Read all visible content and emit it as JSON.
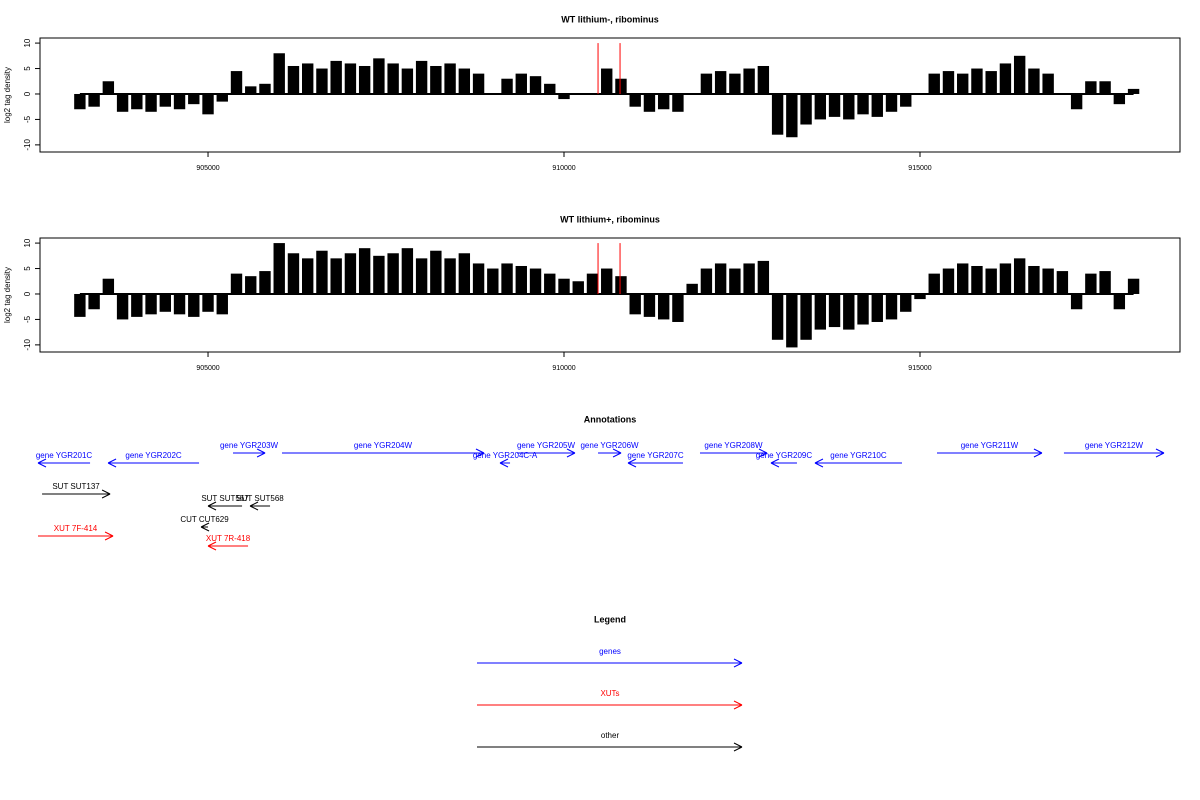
{
  "chart_data": [
    {
      "type": "bar",
      "title": "WT lithium-, ribominus",
      "ylabel": "log2 tag density",
      "color": "#000000",
      "x": [
        903200,
        903400,
        903600,
        903800,
        904000,
        904200,
        904400,
        904600,
        904800,
        905000,
        905200,
        905400,
        905600,
        905800,
        906000,
        906200,
        906400,
        906600,
        906800,
        907000,
        907200,
        907400,
        907600,
        907800,
        908000,
        908200,
        908400,
        908600,
        908800,
        909000,
        909200,
        909400,
        909600,
        909800,
        910000,
        910200,
        910400,
        910600,
        910800,
        911000,
        911200,
        911400,
        911600,
        911800,
        912000,
        912200,
        912400,
        912600,
        912800,
        913000,
        913200,
        913400,
        913600,
        913800,
        914000,
        914200,
        914400,
        914600,
        914800,
        915000,
        915200,
        915400,
        915600,
        915800,
        916000,
        916200,
        916400,
        916600,
        916800,
        917000,
        917200,
        917400,
        917600,
        917800,
        918000
      ],
      "values": [
        -3,
        -2.5,
        2.5,
        -3.5,
        -3,
        -3.5,
        -2.5,
        -3,
        -2,
        -4,
        -1.5,
        4.5,
        1.5,
        2,
        8,
        5.5,
        6,
        5,
        6.5,
        6,
        5.5,
        7,
        6,
        5,
        6.5,
        5.5,
        6,
        5,
        4,
        0,
        3,
        4,
        3.5,
        2,
        -1,
        0,
        0,
        5,
        3,
        -2.5,
        -3.5,
        -3,
        -3.5,
        0,
        4,
        4.5,
        4,
        5,
        5.5,
        -8,
        -8.5,
        -6,
        -5,
        -4.5,
        -5,
        -4,
        -4.5,
        -3.5,
        -2.5,
        0,
        4,
        4.5,
        4,
        5,
        4.5,
        6,
        7.5,
        5,
        4,
        0,
        -3,
        2.5,
        2.5,
        -2,
        1
      ],
      "highlight": {
        "x": [
          910478,
          910787
        ],
        "values": [
          10,
          10
        ],
        "color": "#ff0000"
      },
      "xlim": [
        902640,
        918652
      ],
      "xticks": [
        905000,
        910000,
        915000
      ],
      "ylim": [
        -11.4,
        11
      ],
      "yticks": [
        -10,
        -5,
        0,
        5,
        10
      ]
    },
    {
      "type": "bar",
      "title": "WT lithium+, ribominus",
      "ylabel": "log2 tag density",
      "color": "#000000",
      "x": [
        903200,
        903400,
        903600,
        903800,
        904000,
        904200,
        904400,
        904600,
        904800,
        905000,
        905200,
        905400,
        905600,
        905800,
        906000,
        906200,
        906400,
        906600,
        906800,
        907000,
        907200,
        907400,
        907600,
        907800,
        908000,
        908200,
        908400,
        908600,
        908800,
        909000,
        909200,
        909400,
        909600,
        909800,
        910000,
        910200,
        910400,
        910600,
        910800,
        911000,
        911200,
        911400,
        911600,
        911800,
        912000,
        912200,
        912400,
        912600,
        912800,
        913000,
        913200,
        913400,
        913600,
        913800,
        914000,
        914200,
        914400,
        914600,
        914800,
        915000,
        915200,
        915400,
        915600,
        915800,
        916000,
        916200,
        916400,
        916600,
        916800,
        917000,
        917200,
        917400,
        917600,
        917800,
        918000
      ],
      "values": [
        -4.5,
        -3,
        3,
        -5,
        -4.5,
        -4,
        -3.5,
        -4,
        -4.5,
        -3.5,
        -4,
        4,
        3.5,
        4.5,
        10,
        8,
        7,
        8.5,
        7,
        8,
        9,
        7.5,
        8,
        9,
        7,
        8.5,
        7,
        8,
        6,
        5,
        6,
        5.5,
        5,
        4,
        3,
        2.5,
        4,
        5,
        3.5,
        -4,
        -4.5,
        -5,
        -5.5,
        2,
        5,
        6,
        5,
        6,
        6.5,
        -9,
        -10.5,
        -9,
        -7,
        -6.5,
        -7,
        -6,
        -5.5,
        -5,
        -3.5,
        -1,
        4,
        5,
        6,
        5.5,
        5,
        6,
        7,
        5.5,
        5,
        4.5,
        -3,
        4,
        4.5,
        -3,
        3
      ],
      "highlight": {
        "x": [
          910478,
          910787
        ],
        "values": [
          10,
          10
        ],
        "color": "#ff0000"
      },
      "xlim": [
        902640,
        918652
      ],
      "xticks": [
        905000,
        910000,
        915000
      ],
      "ylim": [
        -11.4,
        11
      ],
      "yticks": [
        -10,
        -5,
        0,
        5,
        10
      ]
    }
  ],
  "annotations": {
    "title": "Annotations",
    "features": [
      {
        "label": "gene YGR201C",
        "from": 903343,
        "to": 902612,
        "color": "#0000ff"
      },
      {
        "label": "gene YGR202C",
        "from": 904874,
        "to": 903596,
        "color": "#0000ff"
      },
      {
        "label": "gene YGR203W",
        "from": 905351,
        "to": 905801,
        "color": "#0000ff"
      },
      {
        "label": "gene YGR204W",
        "from": 906039,
        "to": 908876,
        "color": "#0000ff"
      },
      {
        "label": "gene YGR204C-A",
        "from": 909242,
        "to": 909101,
        "color": "#0000ff"
      },
      {
        "label": "gene YGR205W",
        "from": 909340,
        "to": 910154,
        "color": "#0000ff"
      },
      {
        "label": "gene YGR206W",
        "from": 910478,
        "to": 910801,
        "color": "#0000ff"
      },
      {
        "label": "gene YGR207C",
        "from": 911671,
        "to": 910899,
        "color": "#0000ff"
      },
      {
        "label": "gene YGR208W",
        "from": 911910,
        "to": 912851,
        "color": "#0000ff"
      },
      {
        "label": "gene YGR209C",
        "from": 913272,
        "to": 912907,
        "color": "#0000ff"
      },
      {
        "label": "gene YGR210C",
        "from": 914747,
        "to": 913525,
        "color": "#0000ff"
      },
      {
        "label": "gene YGR211W",
        "from": 915239,
        "to": 916713,
        "color": "#0000ff"
      },
      {
        "label": "gene YGR212W",
        "from": 917022,
        "to": 918427,
        "color": "#0000ff"
      },
      {
        "label": "SUT SUT137",
        "from": 902669,
        "to": 903624,
        "color": "#000000"
      },
      {
        "label": "SUT SUT567",
        "from": 905478,
        "to": 905000,
        "color": "#000000"
      },
      {
        "label": "SUT SUT568",
        "from": 905871,
        "to": 905590,
        "color": "#000000"
      },
      {
        "label": "CUT CUT629",
        "from": 905000,
        "to": 904902,
        "color": "#000000"
      },
      {
        "label": "XUT 7F-414",
        "from": 902612,
        "to": 903666,
        "color": "#ff0000"
      },
      {
        "label": "XUT 7R-418",
        "from": 905562,
        "to": 905000,
        "color": "#ff0000"
      }
    ]
  },
  "legend": {
    "title": "Legend",
    "items": [
      {
        "label": "genes",
        "color": "#0000ff"
      },
      {
        "label": "XUTs",
        "color": "#ff0000"
      },
      {
        "label": "other",
        "color": "#000000"
      }
    ]
  }
}
